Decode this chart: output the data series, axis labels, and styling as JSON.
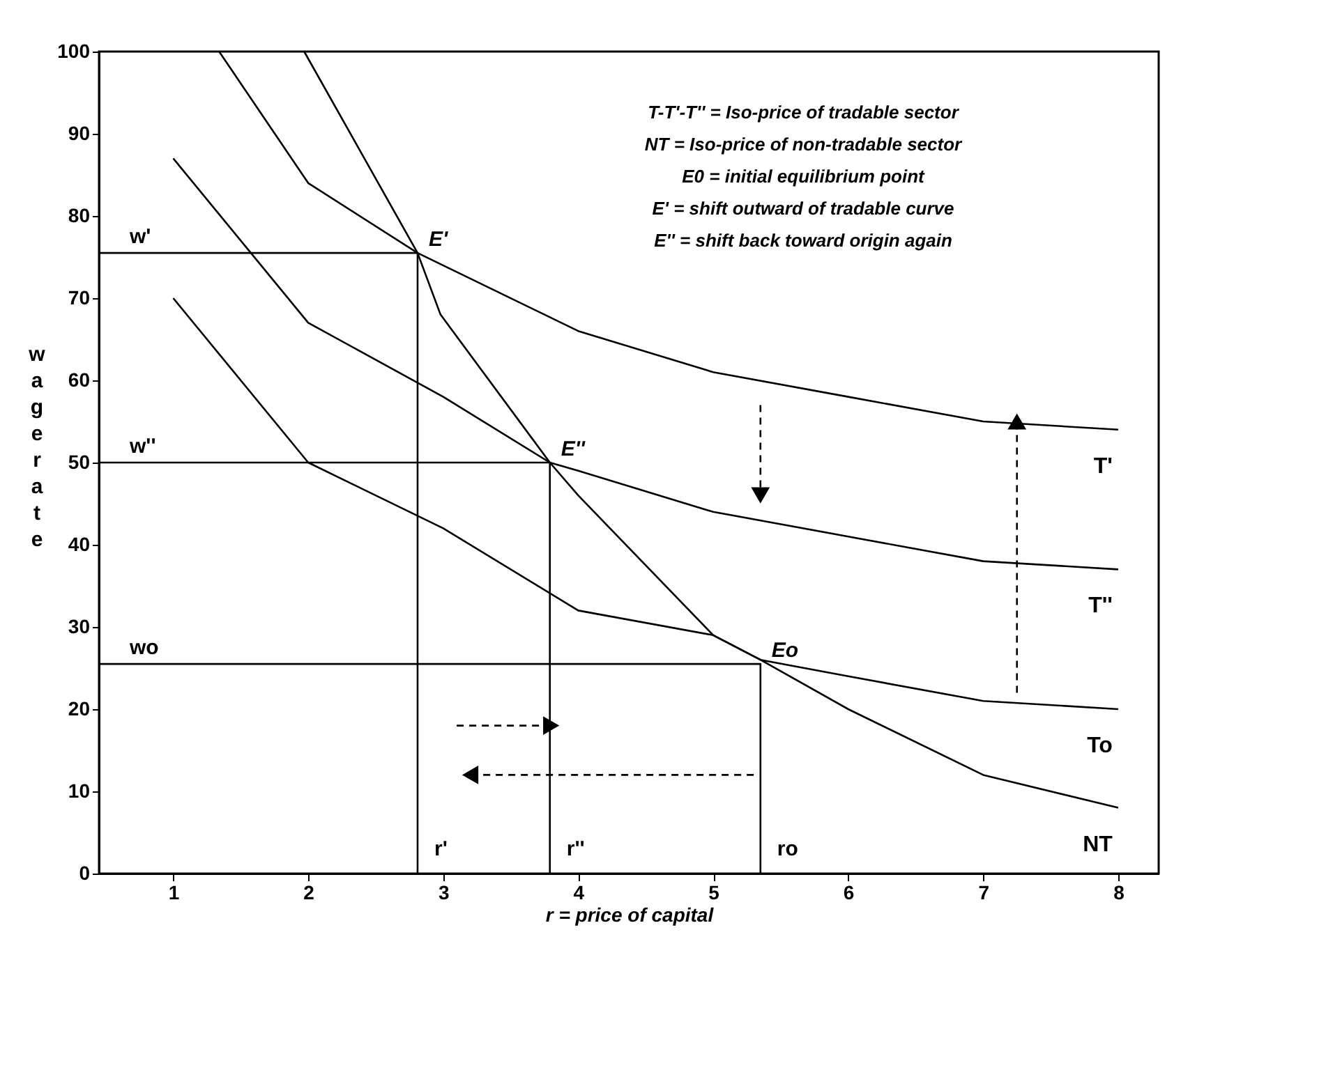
{
  "chart_data": {
    "type": "line",
    "xlabel": "r = price of capital",
    "ylabel": "wage rate",
    "xlim": [
      0.45,
      8.3
    ],
    "ylim": [
      0,
      100
    ],
    "xticks": [
      1,
      2,
      3,
      4,
      5,
      6,
      7,
      8
    ],
    "yticks": [
      0,
      10,
      20,
      30,
      40,
      50,
      60,
      70,
      80,
      90,
      100
    ],
    "grid": false,
    "marker": "none",
    "line_style": "solid",
    "series": [
      {
        "name": "T'",
        "color": "#000000",
        "x": [
          1.34,
          2,
          2.81,
          4,
          5,
          6,
          7,
          8
        ],
        "values": [
          100,
          84,
          75.5,
          66,
          61,
          58,
          55,
          54
        ]
      },
      {
        "name": "T''",
        "color": "#000000",
        "x": [
          1,
          2,
          3,
          3.79,
          4,
          5,
          6,
          7,
          8
        ],
        "values": [
          87,
          67,
          58,
          50,
          49,
          44,
          41,
          38,
          37
        ]
      },
      {
        "name": "To",
        "color": "#000000",
        "x": [
          1,
          2,
          3,
          4,
          5,
          5.35,
          6,
          7,
          8
        ],
        "values": [
          70,
          50,
          42,
          32,
          29,
          26,
          24,
          21,
          20
        ]
      },
      {
        "name": "NT",
        "color": "#000000",
        "x": [
          1.97,
          2.81,
          2.98,
          3.79,
          4,
          5,
          5.35,
          6,
          7,
          8
        ],
        "values": [
          100,
          75.5,
          68,
          50,
          46,
          29,
          26,
          20,
          12,
          8
        ]
      },
      {
        "color": "#000000",
        "x": [
          0.45,
          2.81,
          2.81
        ],
        "values": [
          75.5,
          75.5,
          0
        ]
      },
      {
        "color": "#000000",
        "x": [
          0.45,
          3.79,
          3.79
        ],
        "values": [
          50,
          50,
          0
        ]
      },
      {
        "color": "#000000",
        "x": [
          0.45,
          5.35,
          5.35
        ],
        "values": [
          25.5,
          25.5,
          0
        ]
      }
    ],
    "annotations": [
      "T-T'-T'' = Iso-price of tradable sector",
      "NT = Iso-price of non-tradable sector",
      "E0 = initial equilibrium point",
      "E' = shift outward of tradable curve",
      "E'' = shift back toward origin again",
      {
        "text": "E'",
        "x": 2.81,
        "y": 75.5
      },
      {
        "text": "E''",
        "x": 3.79,
        "y": 50
      },
      {
        "text": "Eo",
        "x": 5.35,
        "y": 25.5
      },
      {
        "text": "w'",
        "x": 0.45,
        "y": 75.5
      },
      {
        "text": "w''",
        "x": 0.45,
        "y": 50
      },
      {
        "text": "wo",
        "x": 0.45,
        "y": 25.5
      },
      {
        "text": "r'",
        "x": 2.81,
        "y": 0
      },
      {
        "text": "r''",
        "x": 3.79,
        "y": 0
      },
      {
        "text": "ro",
        "x": 5.35,
        "y": 0
      }
    ]
  }
}
